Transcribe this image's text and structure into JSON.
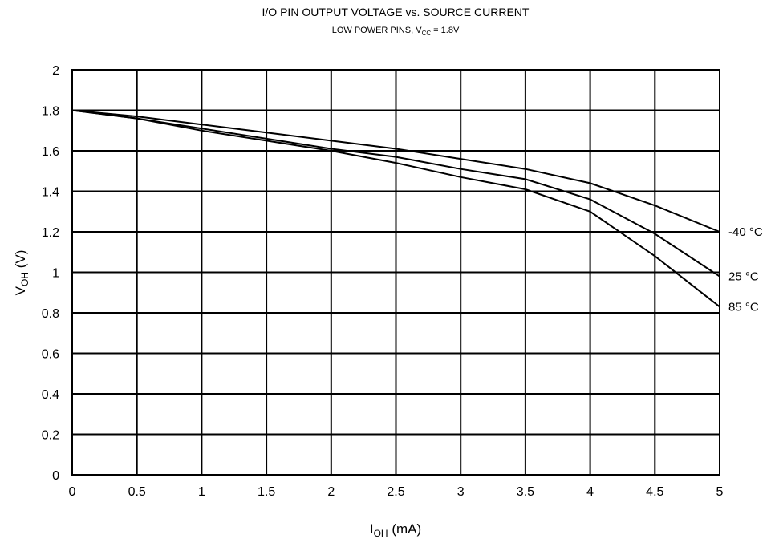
{
  "chart_data": {
    "type": "line",
    "title": "I/O PIN OUTPUT VOLTAGE vs. SOURCE CURRENT",
    "subtitle": {
      "pre": "LOW POWER PINS, V",
      "sub": "CC",
      "post": " = 1.8V"
    },
    "xlabel": {
      "main": "I",
      "sub": "OH",
      "post": " (mA)"
    },
    "ylabel": {
      "main": "V",
      "sub": "OH",
      "post": " (V)"
    },
    "xlim": [
      0,
      5
    ],
    "ylim": [
      0,
      2
    ],
    "xticks": [
      "0",
      "0.5",
      "1",
      "1.5",
      "2",
      "2.5",
      "3",
      "3.5",
      "4",
      "4.5",
      "5"
    ],
    "yticks": [
      "0",
      "0.2",
      "0.4",
      "0.6",
      "0.8",
      "1",
      "1.2",
      "1.4",
      "1.6",
      "1.8",
      "2"
    ],
    "grid": true,
    "series": [
      {
        "name": "-40 °C",
        "x": [
          0,
          0.5,
          1,
          1.5,
          2,
          2.5,
          3,
          3.5,
          4,
          4.5,
          5
        ],
        "y": [
          1.8,
          1.77,
          1.73,
          1.69,
          1.65,
          1.61,
          1.56,
          1.51,
          1.44,
          1.33,
          1.2
        ]
      },
      {
        "name": "25 °C",
        "x": [
          0,
          0.5,
          1,
          1.5,
          2,
          2.5,
          3,
          3.5,
          4,
          4.5,
          5
        ],
        "y": [
          1.8,
          1.76,
          1.71,
          1.66,
          1.61,
          1.57,
          1.51,
          1.46,
          1.36,
          1.19,
          0.98
        ]
      },
      {
        "name": "85 °C",
        "x": [
          0,
          0.5,
          1,
          1.5,
          2,
          2.5,
          3,
          3.5,
          4,
          4.5,
          5
        ],
        "y": [
          1.8,
          1.76,
          1.7,
          1.65,
          1.6,
          1.54,
          1.47,
          1.41,
          1.3,
          1.08,
          0.83
        ]
      }
    ]
  }
}
